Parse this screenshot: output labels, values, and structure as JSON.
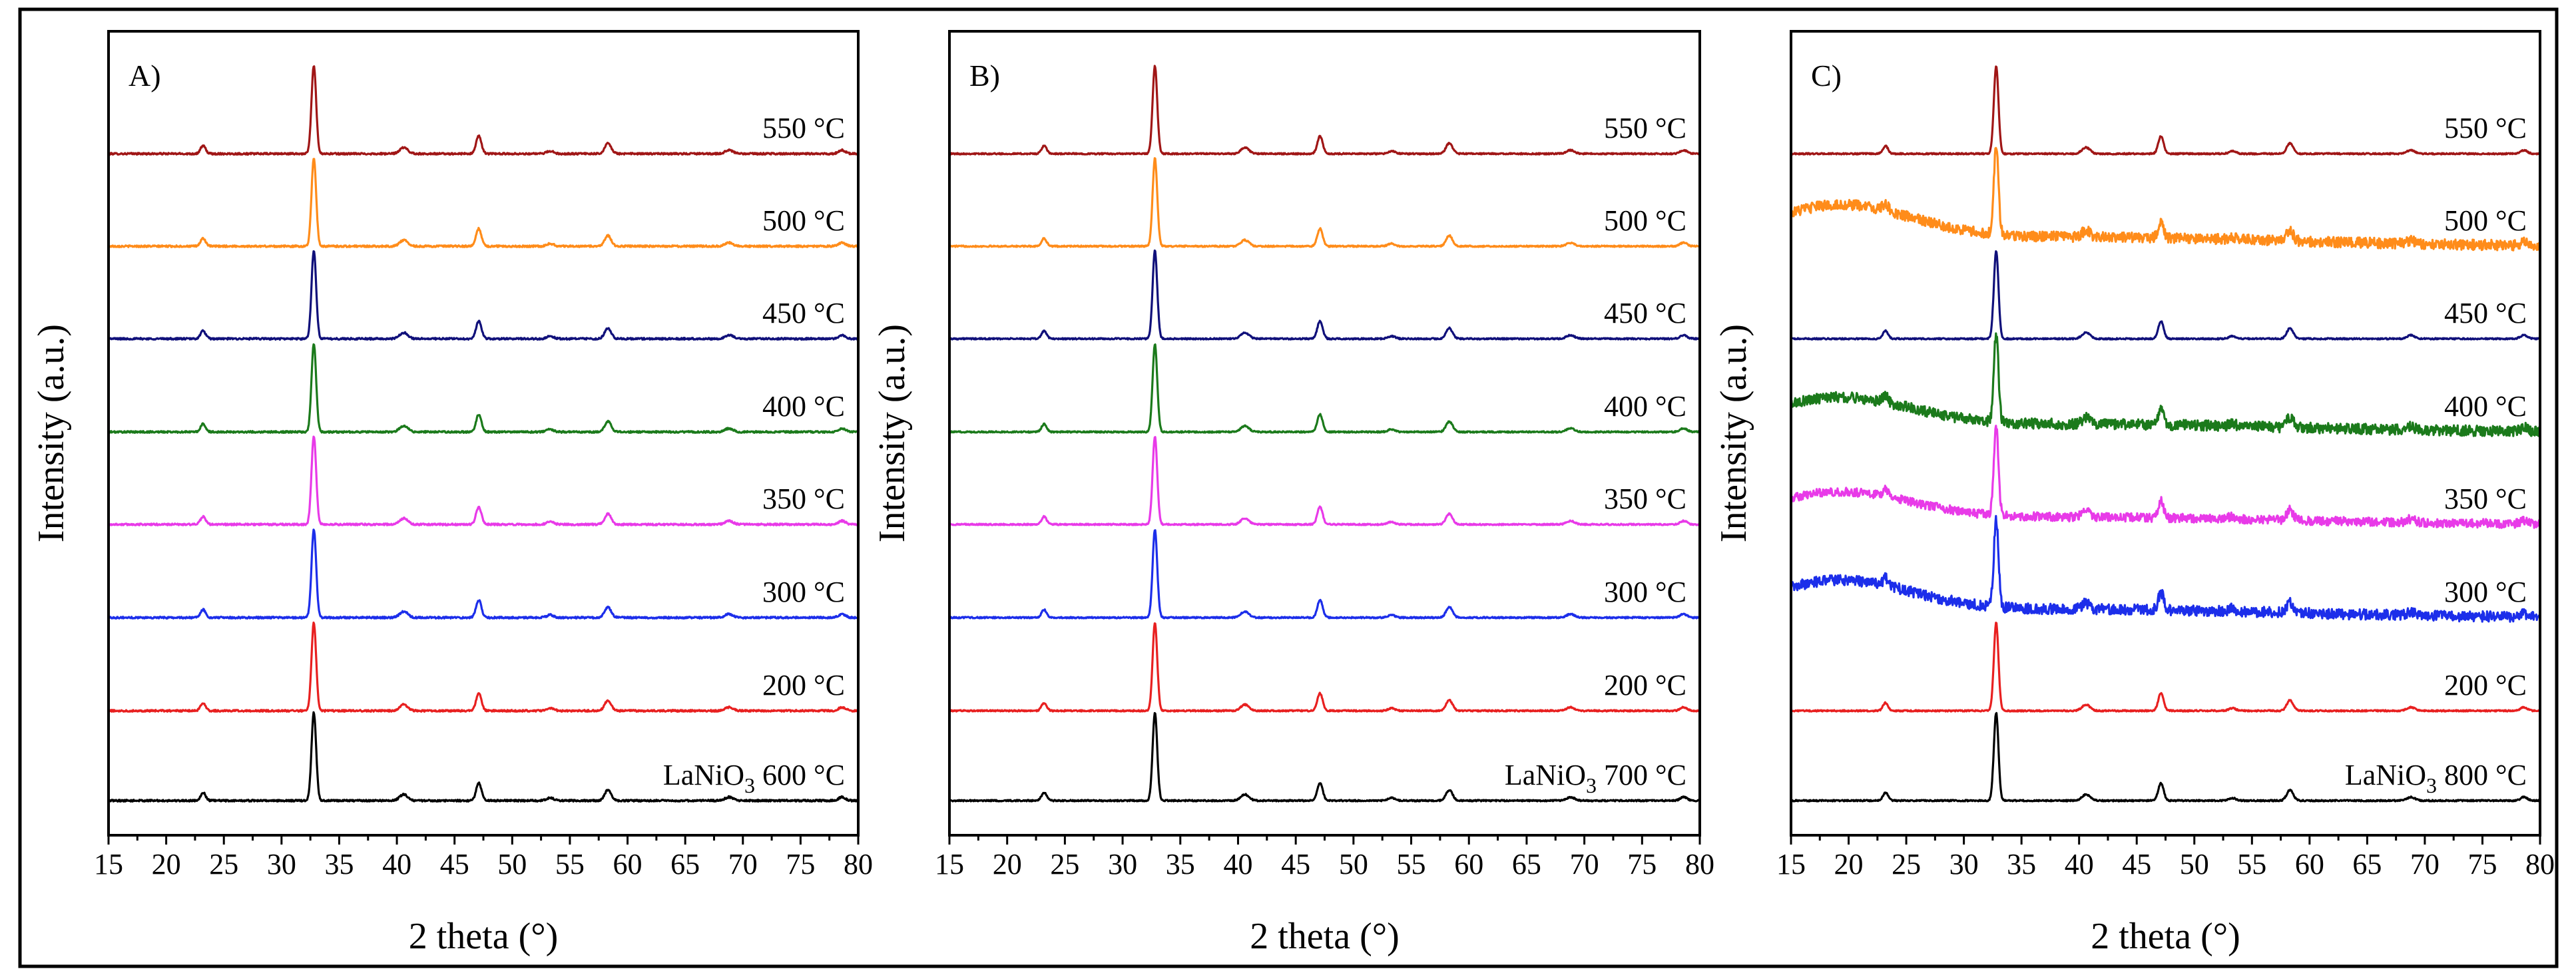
{
  "chart_data": [
    {
      "type": "line",
      "panel": "A)",
      "xlabel": "2 theta (°)",
      "ylabel": "Intensity  (a.u.)",
      "xlim": [
        15,
        80
      ],
      "xticks": [
        15,
        20,
        25,
        30,
        35,
        40,
        45,
        50,
        55,
        60,
        65,
        70,
        75,
        80
      ],
      "peaks_2theta": [
        23.2,
        32.8,
        40.6,
        47.1,
        53.3,
        58.3,
        68.8,
        78.6
      ],
      "baseline_rising_low_angle": false,
      "series": [
        {
          "name": "550 °C",
          "label": "550 °C",
          "color": "#a01616",
          "noise": 0.01,
          "hump": 0
        },
        {
          "name": "500 °C",
          "label": "500 °C",
          "color": "#ff8c1a",
          "noise": 0.01,
          "hump": 0
        },
        {
          "name": "450 °C",
          "label": "450 °C",
          "color": "#10107a",
          "noise": 0.01,
          "hump": 0
        },
        {
          "name": "400 °C",
          "label": "400 °C",
          "color": "#1b7a1b",
          "noise": 0.01,
          "hump": 0
        },
        {
          "name": "350 °C",
          "label": "350 °C",
          "color": "#e83ae8",
          "noise": 0.01,
          "hump": 0
        },
        {
          "name": "300 °C",
          "label": "300 °C",
          "color": "#1c2eea",
          "noise": 0.01,
          "hump": 0
        },
        {
          "name": "200 °C",
          "label": "200 °C",
          "color": "#e82020",
          "noise": 0.01,
          "hump": 0
        },
        {
          "name": "LaNiO3 600 °C",
          "label": "LaNiO",
          "sub": "3",
          "label_suffix": " 600 °C",
          "color": "#000000",
          "noise": 0.01,
          "hump": 0
        }
      ]
    },
    {
      "type": "line",
      "panel": "B)",
      "xlabel": "2 theta (°)",
      "ylabel": "Intensity  (a.u.)",
      "xlim": [
        15,
        80
      ],
      "xticks": [
        15,
        20,
        25,
        30,
        35,
        40,
        45,
        50,
        55,
        60,
        65,
        70,
        75,
        80
      ],
      "peaks_2theta": [
        23.2,
        32.8,
        40.6,
        47.1,
        53.3,
        58.3,
        68.8,
        78.6
      ],
      "series": [
        {
          "name": "550 °C",
          "label": "550 °C",
          "color": "#a01616",
          "noise": 0.008,
          "hump": 0
        },
        {
          "name": "500 °C",
          "label": "500 °C",
          "color": "#ff8c1a",
          "noise": 0.008,
          "hump": 0
        },
        {
          "name": "450 °C",
          "label": "450 °C",
          "color": "#10107a",
          "noise": 0.008,
          "hump": 0
        },
        {
          "name": "400 °C",
          "label": "400 °C",
          "color": "#1b7a1b",
          "noise": 0.008,
          "hump": 0
        },
        {
          "name": "350 °C",
          "label": "350 °C",
          "color": "#e83ae8",
          "noise": 0.008,
          "hump": 0
        },
        {
          "name": "300 °C",
          "label": "300 °C",
          "color": "#1c2eea",
          "noise": 0.008,
          "hump": 0
        },
        {
          "name": "200 °C",
          "label": "200 °C",
          "color": "#e82020",
          "noise": 0.008,
          "hump": 0
        },
        {
          "name": "LaNiO3 700 °C",
          "label": "LaNiO",
          "sub": "3",
          "label_suffix": " 700 °C",
          "color": "#000000",
          "noise": 0.008,
          "hump": 0
        }
      ]
    },
    {
      "type": "line",
      "panel": "C)",
      "xlabel": "2 theta (°)",
      "ylabel": "Intensity  (a.u.)",
      "xlim": [
        15,
        80
      ],
      "xticks": [
        15,
        20,
        25,
        30,
        35,
        40,
        45,
        50,
        55,
        60,
        65,
        70,
        75,
        80
      ],
      "peaks_2theta": [
        23.2,
        32.8,
        40.6,
        47.1,
        53.3,
        58.3,
        68.8,
        78.6
      ],
      "series": [
        {
          "name": "550 °C",
          "label": "550 °C",
          "color": "#a01616",
          "noise": 0.008,
          "hump": 0
        },
        {
          "name": "500 °C",
          "label": "500 °C",
          "color": "#ff8c1a",
          "noise": 0.06,
          "hump": 0.42
        },
        {
          "name": "450 °C",
          "label": "450 °C",
          "color": "#10107a",
          "noise": 0.008,
          "hump": 0
        },
        {
          "name": "400 °C",
          "label": "400 °C",
          "color": "#1b7a1b",
          "noise": 0.06,
          "hump": 0.35
        },
        {
          "name": "350 °C",
          "label": "350 °C",
          "color": "#e83ae8",
          "noise": 0.05,
          "hump": 0.33
        },
        {
          "name": "300 °C",
          "label": "300 °C",
          "color": "#1c2eea",
          "noise": 0.06,
          "hump": 0.38
        },
        {
          "name": "200 °C",
          "label": "200 °C",
          "color": "#e82020",
          "noise": 0.008,
          "hump": 0
        },
        {
          "name": "LaNiO3 800 °C",
          "label": "LaNiO",
          "sub": "3",
          "label_suffix": " 800 °C",
          "color": "#000000",
          "noise": 0.008,
          "hump": 0
        }
      ]
    }
  ]
}
